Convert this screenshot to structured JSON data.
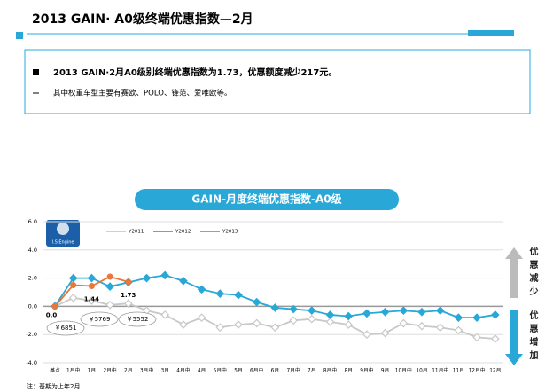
{
  "header": {
    "title": "2013 GAIN· A0级终端优惠指数—2月"
  },
  "bullets": [
    "2013 GAIN·2月A0级别终端优惠指数为1.73，优惠额度减少217元。",
    "其中权重车型主要有赛欧、POLO、锋范、爱唯欧等。"
  ],
  "chart_data": {
    "type": "line",
    "title": "GAIN-月度终端优惠指数-A0级",
    "logo": "I.S.Engine",
    "categories": [
      "基点",
      "1月中",
      "1月",
      "2月中",
      "2月",
      "3月中",
      "3月",
      "4月中",
      "4月",
      "5月中",
      "5月",
      "6月中",
      "6月",
      "7月中",
      "7月",
      "8月中",
      "8月",
      "9月中",
      "9月",
      "10月中",
      "10月",
      "11月中",
      "11月",
      "12月中",
      "12月"
    ],
    "series": [
      {
        "name": "Y2011",
        "color": "#c8c8c8",
        "values": [
          0,
          0.6,
          0.4,
          0.1,
          0.2,
          -0.3,
          -0.6,
          -1.3,
          -0.8,
          -1.5,
          -1.3,
          -1.2,
          -1.5,
          -1.0,
          -0.9,
          -1.1,
          -1.3,
          -2.0,
          -1.9,
          -1.2,
          -1.4,
          -1.5,
          -1.7,
          -2.2,
          -2.3
        ]
      },
      {
        "name": "Y2012",
        "color": "#29a8d8",
        "values": [
          0,
          2.0,
          2.0,
          1.4,
          1.7,
          2.0,
          2.2,
          1.8,
          1.2,
          0.9,
          0.8,
          0.3,
          -0.1,
          -0.2,
          -0.3,
          -0.6,
          -0.7,
          -0.5,
          -0.4,
          -0.3,
          -0.4,
          -0.3,
          -0.8,
          -0.8,
          -0.6
        ]
      },
      {
        "name": "Y2013",
        "color": "#e8773a",
        "values": [
          0,
          1.5,
          1.44,
          2.1,
          1.73,
          null,
          null,
          null,
          null,
          null,
          null,
          null,
          null,
          null,
          null,
          null,
          null,
          null,
          null,
          null,
          null,
          null,
          null,
          null,
          null
        ],
        "value_labels": [
          "0.0",
          null,
          "1.44",
          null,
          "1.73",
          null,
          null,
          null,
          null,
          null,
          null,
          null,
          null,
          null,
          null,
          null,
          null,
          null,
          null,
          null,
          null,
          null,
          null,
          null,
          null
        ]
      }
    ],
    "ylim": [
      -4,
      6
    ],
    "yticks": [
      {
        "value": -4,
        "label": "-4.0"
      },
      {
        "value": -2,
        "label": "-2.0"
      },
      {
        "value": 0,
        "label": "0.0"
      },
      {
        "value": 2,
        "label": "2.0"
      },
      {
        "value": 4,
        "label": "4.0"
      },
      {
        "value": 6,
        "label": "6.0"
      }
    ],
    "grid": true,
    "annotations": [
      "￥6851",
      "￥5769",
      "￥5552"
    ],
    "side_labels": [
      "优惠减少",
      "优惠增加"
    ],
    "note": "注：基期为上年2月"
  }
}
